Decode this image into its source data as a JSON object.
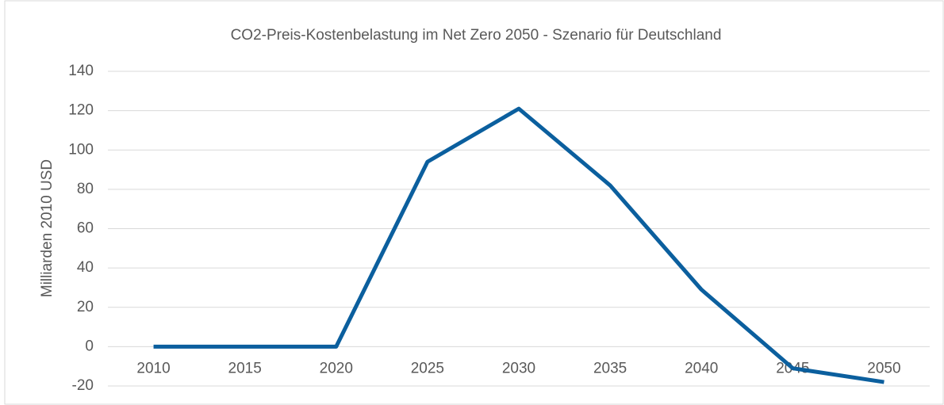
{
  "chart_data": {
    "type": "line",
    "title": "CO2-Preis-Kostenbelastung  im Net Zero 2050 - Szenario für Deutschland",
    "y_label": "Milliarden  2010 USD",
    "categories": [
      "2010",
      "2015",
      "2020",
      "2025",
      "2030",
      "2035",
      "2040",
      "2045",
      "2050"
    ],
    "values": [
      0,
      0,
      0,
      94,
      121,
      82,
      29,
      -11,
      -18
    ],
    "color": "#0b5f9e",
    "ylim": [
      -20,
      140
    ],
    "yticks": [
      -20,
      0,
      20,
      40,
      60,
      80,
      100,
      120,
      140
    ],
    "grid": true
  }
}
